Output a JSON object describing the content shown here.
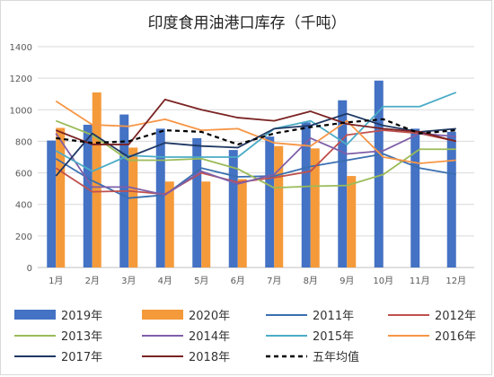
{
  "chart_data": {
    "type": "bar+line",
    "title": "印度食用油港口库存（千吨）",
    "categories": [
      "1月",
      "2月",
      "3月",
      "4月",
      "5月",
      "6月",
      "7月",
      "8月",
      "9月",
      "10月",
      "11月",
      "12月"
    ],
    "ylim": [
      0,
      1400
    ],
    "yticks": [
      0,
      200,
      400,
      600,
      800,
      1000,
      1200,
      1400
    ],
    "grid": "horizontal",
    "legend": "bottom",
    "bar_series": [
      {
        "name": "2019年",
        "color": "#4472C4",
        "values": [
          805,
          905,
          970,
          880,
          820,
          745,
          830,
          920,
          1060,
          1185,
          880,
          860
        ]
      },
      {
        "name": "2020年",
        "color": "#F59A3A",
        "values": [
          885,
          1110,
          760,
          545,
          545,
          560,
          770,
          755,
          580,
          null,
          null,
          null
        ]
      }
    ],
    "line_series": [
      {
        "name": "2011年",
        "color": "#3A6FB0",
        "dash": "",
        "values": [
          690,
          550,
          440,
          460,
          630,
          575,
          580,
          640,
          680,
          720,
          630,
          590
        ]
      },
      {
        "name": "2012年",
        "color": "#C0504D",
        "dash": "",
        "values": [
          630,
          480,
          485,
          465,
          600,
          540,
          570,
          610,
          840,
          870,
          850,
          800
        ]
      },
      {
        "name": "2013年",
        "color": "#9BBB59",
        "dash": "",
        "values": [
          930,
          840,
          680,
          680,
          690,
          625,
          505,
          515,
          520,
          590,
          750,
          750
        ]
      },
      {
        "name": "2014年",
        "color": "#7F5FA8",
        "dash": "",
        "values": [
          850,
          510,
          510,
          460,
          610,
          530,
          590,
          820,
          720,
          740,
          850,
          830
        ]
      },
      {
        "name": "2015年",
        "color": "#4BACC6",
        "dash": "",
        "values": [
          740,
          610,
          710,
          700,
          700,
          700,
          880,
          930,
          780,
          1020,
          1020,
          1110
        ]
      },
      {
        "name": "2016年",
        "color": "#F79646",
        "dash": "",
        "values": [
          1055,
          905,
          895,
          940,
          870,
          880,
          790,
          770,
          930,
          700,
          660,
          680
        ]
      },
      {
        "name": "2017年",
        "color": "#1F3864",
        "dash": "",
        "values": [
          580,
          850,
          700,
          790,
          770,
          760,
          880,
          900,
          975,
          900,
          860,
          880
        ]
      },
      {
        "name": "2018年",
        "color": "#7B2323",
        "dash": "",
        "values": [
          870,
          780,
          780,
          1065,
          1000,
          950,
          930,
          990,
          910,
          880,
          860,
          800
        ]
      },
      {
        "name": "五年均值",
        "color": "#000000",
        "dash": "5,4",
        "values": [
          820,
          790,
          800,
          870,
          860,
          780,
          850,
          890,
          920,
          940,
          850,
          870
        ]
      }
    ],
    "legend_order": [
      "2019年",
      "2020年",
      "2011年",
      "2012年",
      "2013年",
      "2014年",
      "2015年",
      "2016年",
      "2017年",
      "2018年",
      "五年均值"
    ]
  }
}
